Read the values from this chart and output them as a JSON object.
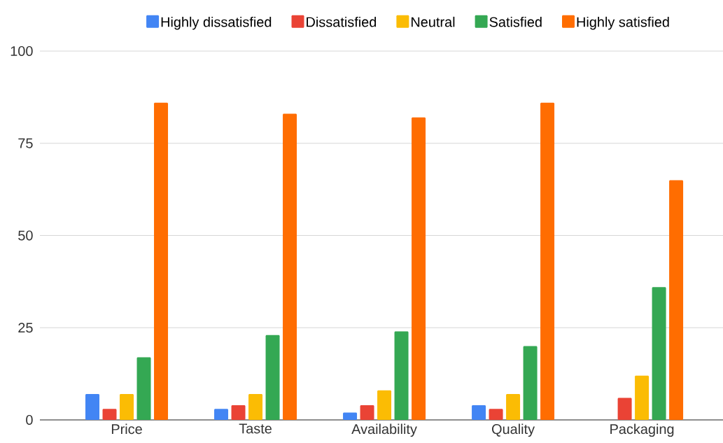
{
  "chart_data": {
    "type": "bar",
    "categories": [
      "Price",
      "Taste",
      "Availability",
      "Quality",
      "Packaging"
    ],
    "series": [
      {
        "name": "Highly dissatisfied",
        "color": "#4285f4",
        "values": [
          7,
          3,
          2,
          4,
          0
        ]
      },
      {
        "name": "Dissatisfied",
        "color": "#ea4335",
        "values": [
          3,
          4,
          4,
          3,
          6
        ]
      },
      {
        "name": "Neutral",
        "color": "#fbbc04",
        "values": [
          7,
          7,
          8,
          7,
          12
        ]
      },
      {
        "name": "Satisfied",
        "color": "#34a853",
        "values": [
          17,
          23,
          24,
          20,
          36
        ]
      },
      {
        "name": "Highly satisfied",
        "color": "#ff6d01",
        "values": [
          86,
          83,
          82,
          86,
          65
        ]
      }
    ],
    "ylim": [
      0,
      100
    ],
    "yticks": [
      0,
      25,
      50,
      75,
      100
    ],
    "grid": "y",
    "legend": "top"
  }
}
